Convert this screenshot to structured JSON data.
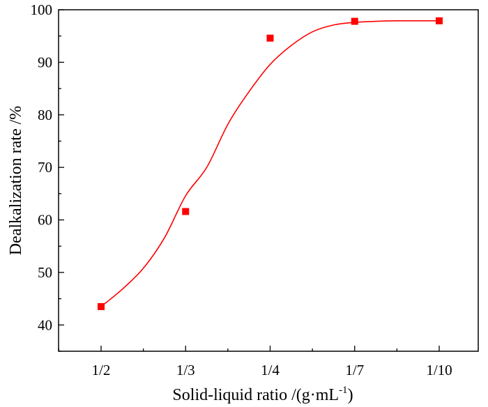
{
  "chart_data": {
    "type": "scatter",
    "title": "",
    "xlabel": {
      "main": "Solid-liquid ratio /(g·mL",
      "superscript": "-1",
      "suffix": ")"
    },
    "ylabel": "Dealkalization rate /%",
    "categories": [
      "1/2",
      "1/3",
      "1/4",
      "1/7",
      "1/10"
    ],
    "ylim": [
      35,
      100
    ],
    "yticks": [
      40,
      50,
      60,
      70,
      80,
      90,
      100
    ],
    "series": [
      {
        "name": "measured",
        "marker": "square",
        "color": "#ff0000",
        "values": [
          43.5,
          61.6,
          94.6,
          97.8,
          97.9
        ]
      },
      {
        "name": "fit",
        "style": "line",
        "color": "#ff0000",
        "x_index": [
          0,
          0.25,
          0.5,
          0.75,
          1,
          1.25,
          1.5,
          1.75,
          2,
          2.25,
          2.5,
          2.75,
          3,
          3.25,
          3.5,
          3.75,
          4
        ],
        "values": [
          43.5,
          46.8,
          50.8,
          56.6,
          64.6,
          70.0,
          78.2,
          84.4,
          89.6,
          93.2,
          95.8,
          97.1,
          97.6,
          97.8,
          97.9,
          97.9,
          97.9
        ]
      }
    ],
    "legend": "none",
    "grid": false
  }
}
